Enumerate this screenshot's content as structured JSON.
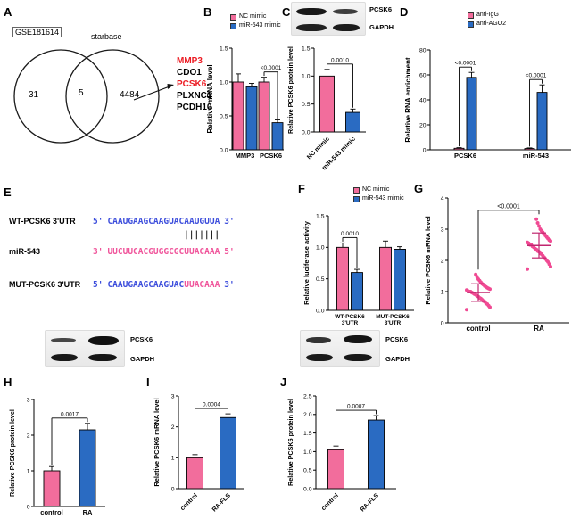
{
  "colors": {
    "pink": "#F26D9C",
    "blue": "#2A6BC2",
    "red": "#EC1C24",
    "seq_blue": "#3D4EDC",
    "seq_pink": "#F0559B",
    "dot": "#F04A93",
    "mean_bar": "#C0266F"
  },
  "panels": {
    "a": "A",
    "b": "B",
    "c": "C",
    "d": "D",
    "e": "E",
    "f": "F",
    "g": "G",
    "h": "H",
    "i": "I",
    "j": "J"
  },
  "venn": {
    "left_label": "GSE181614",
    "right_label": "starbase",
    "left_count": "31",
    "overlap_count": "5",
    "right_count": "4484",
    "genes": [
      {
        "name": "MMP3",
        "highlight": true
      },
      {
        "name": "CDO1",
        "highlight": false
      },
      {
        "name": "PCSK6",
        "highlight": true
      },
      {
        "name": "PLXNC1",
        "highlight": false
      },
      {
        "name": "PCDH10",
        "highlight": false
      }
    ]
  },
  "blot_labels": {
    "band1": "PCSK6",
    "band2": "GAPDH"
  },
  "sequences": {
    "wt": {
      "label": "WT-PCSK6 3'UTR",
      "prefix": "5'",
      "main": "CAAUGAAGCAAGUAC",
      "tail": "AAUGUUA",
      "suffix": "3'"
    },
    "pairing": "|||||||",
    "mir": {
      "label": "miR-543",
      "prefix": "3'",
      "main": "UUCUUCACGUGGCGC",
      "tail": "UUACAAA",
      "suffix": "5'"
    },
    "mut": {
      "label": "MUT-PCSK6 3'UTR",
      "prefix": "5'",
      "main": "CAAUGAAGCAAGUAC",
      "tail": "UUACAAA",
      "suffix": "3'"
    }
  },
  "chart_data": [
    {
      "id": "b",
      "type": "bar",
      "ylabel": "Relative mRNA level",
      "ylim": [
        0,
        1.5
      ],
      "yticks": [
        0,
        0.5,
        1,
        1.5
      ],
      "ydec": 1,
      "categories": [
        "MMP3",
        "PCSK6"
      ],
      "series": [
        {
          "name": "NC mimic",
          "color": "pink",
          "values": [
            1.0,
            1.0
          ],
          "errors": [
            0.12,
            0.07
          ]
        },
        {
          "name": "miR-543 mimic",
          "color": "blue",
          "values": [
            0.93,
            0.4
          ],
          "errors": [
            0.05,
            0.04
          ]
        }
      ],
      "annotations": [
        {
          "text": "<0.0001",
          "category": 1
        }
      ],
      "legend_position": "top"
    },
    {
      "id": "c",
      "type": "bar",
      "ylabel": "Relative PCSK6 protein level",
      "ylim": [
        0,
        1.5
      ],
      "yticks": [
        0,
        0.5,
        1,
        1.5
      ],
      "ydec": 1,
      "categories": [
        "NC mimic",
        "miR-543 mimic"
      ],
      "xtick_rotation": 45,
      "series": [
        {
          "name": "",
          "colors": [
            "pink",
            "blue"
          ],
          "values": [
            1.0,
            0.35
          ],
          "errors": [
            0.12,
            0.06
          ]
        }
      ],
      "annotations": [
        {
          "text": "0.0010",
          "span": [
            0,
            1
          ]
        }
      ]
    },
    {
      "id": "d",
      "type": "bar",
      "ylabel": "Relative RNA enrichment",
      "ylim": [
        0,
        80
      ],
      "yticks": [
        0,
        20,
        40,
        60,
        80
      ],
      "ydec": 0,
      "categories": [
        "PCSK6",
        "miR-543"
      ],
      "series": [
        {
          "name": "anti-IgG",
          "color": "pink",
          "values": [
            1.2,
            1.0
          ],
          "errors": [
            0.5,
            0.5
          ]
        },
        {
          "name": "anti-AGO2",
          "color": "blue",
          "values": [
            58,
            46
          ],
          "errors": [
            4,
            6
          ]
        }
      ],
      "annotations": [
        {
          "text": "<0.0001",
          "category": 0
        },
        {
          "text": "<0.0001",
          "category": 1
        }
      ],
      "legend_position": "top"
    },
    {
      "id": "f",
      "type": "bar",
      "ylabel": "Relative luciferase activity",
      "ylim": [
        0,
        1.5
      ],
      "yticks": [
        0,
        0.5,
        1,
        1.5
      ],
      "ydec": 1,
      "categories": [
        "WT-PCSK6\n3'UTR",
        "MUT-PCSK6\n3'UTR"
      ],
      "series": [
        {
          "name": "NC mimic",
          "color": "pink",
          "values": [
            1.0,
            1.0
          ],
          "errors": [
            0.07,
            0.1
          ]
        },
        {
          "name": "miR-543 mimic",
          "color": "blue",
          "values": [
            0.6,
            0.97
          ],
          "errors": [
            0.05,
            0.04
          ]
        }
      ],
      "annotations": [
        {
          "text": "0.0010",
          "category": 0
        }
      ],
      "legend_position": "top"
    },
    {
      "id": "g",
      "type": "scatter",
      "ylabel": "Relative PCSK6 mRNA level",
      "ylim": [
        0,
        4
      ],
      "yticks": [
        0,
        1,
        2,
        3,
        4
      ],
      "ydec": 0,
      "categories": [
        "control",
        "RA"
      ],
      "groups": [
        {
          "name": "control",
          "color": "dot",
          "mean": 0.97,
          "sd": 0.28,
          "points": [
            0.42,
            0.5,
            0.55,
            0.6,
            0.62,
            0.68,
            0.7,
            0.74,
            0.78,
            0.8,
            0.84,
            0.86,
            0.9,
            0.92,
            0.95,
            0.97,
            1.0,
            1.0,
            1.02,
            1.05,
            1.08,
            1.1,
            1.12,
            1.15,
            1.18,
            1.22,
            1.25,
            1.3,
            1.35,
            1.4,
            1.48,
            1.55
          ]
        },
        {
          "name": "RA",
          "color": "dot",
          "mean": 2.48,
          "sd": 0.4,
          "points": [
            1.72,
            1.8,
            1.88,
            1.95,
            2.0,
            2.05,
            2.1,
            2.15,
            2.2,
            2.22,
            2.28,
            2.3,
            2.35,
            2.38,
            2.42,
            2.45,
            2.5,
            2.5,
            2.55,
            2.58,
            2.62,
            2.65,
            2.7,
            2.75,
            2.8,
            2.85,
            2.9,
            2.95,
            3.0,
            3.1,
            3.2,
            3.32
          ]
        }
      ],
      "annotations": [
        {
          "text": "<0.0001",
          "span": [
            0,
            1
          ]
        }
      ]
    },
    {
      "id": "h",
      "type": "bar",
      "ylabel": "Relative PCSK6 protein level",
      "ylim": [
        0,
        3
      ],
      "yticks": [
        0,
        1,
        2,
        3
      ],
      "ydec": 0,
      "categories": [
        "control",
        "RA"
      ],
      "series": [
        {
          "name": "",
          "colors": [
            "pink",
            "blue"
          ],
          "values": [
            1.0,
            2.15
          ],
          "errors": [
            0.12,
            0.18
          ]
        }
      ],
      "annotations": [
        {
          "text": "0.0017",
          "span": [
            0,
            1
          ]
        }
      ]
    },
    {
      "id": "i",
      "type": "bar",
      "ylabel": "Relative PCSK6 mRNA level",
      "ylim": [
        0,
        3
      ],
      "yticks": [
        0,
        1,
        2,
        3
      ],
      "ydec": 0,
      "categories": [
        "control",
        "RA-FLS"
      ],
      "xtick_rotation": 45,
      "series": [
        {
          "name": "",
          "colors": [
            "pink",
            "blue"
          ],
          "values": [
            1.0,
            2.3
          ],
          "errors": [
            0.1,
            0.12
          ]
        }
      ],
      "annotations": [
        {
          "text": "0.0004",
          "span": [
            0,
            1
          ]
        }
      ]
    },
    {
      "id": "j",
      "type": "bar",
      "ylabel": "Relative PCSK6 protein level",
      "ylim": [
        0,
        2.5
      ],
      "yticks": [
        0,
        0.5,
        1,
        1.5,
        2,
        2.5
      ],
      "ydec": 1,
      "categories": [
        "control",
        "RA-FLS"
      ],
      "xtick_rotation": 45,
      "series": [
        {
          "name": "",
          "colors": [
            "pink",
            "blue"
          ],
          "values": [
            1.05,
            1.85
          ],
          "errors": [
            0.1,
            0.12
          ]
        }
      ],
      "annotations": [
        {
          "text": "0.0007",
          "span": [
            0,
            1
          ]
        }
      ]
    }
  ]
}
